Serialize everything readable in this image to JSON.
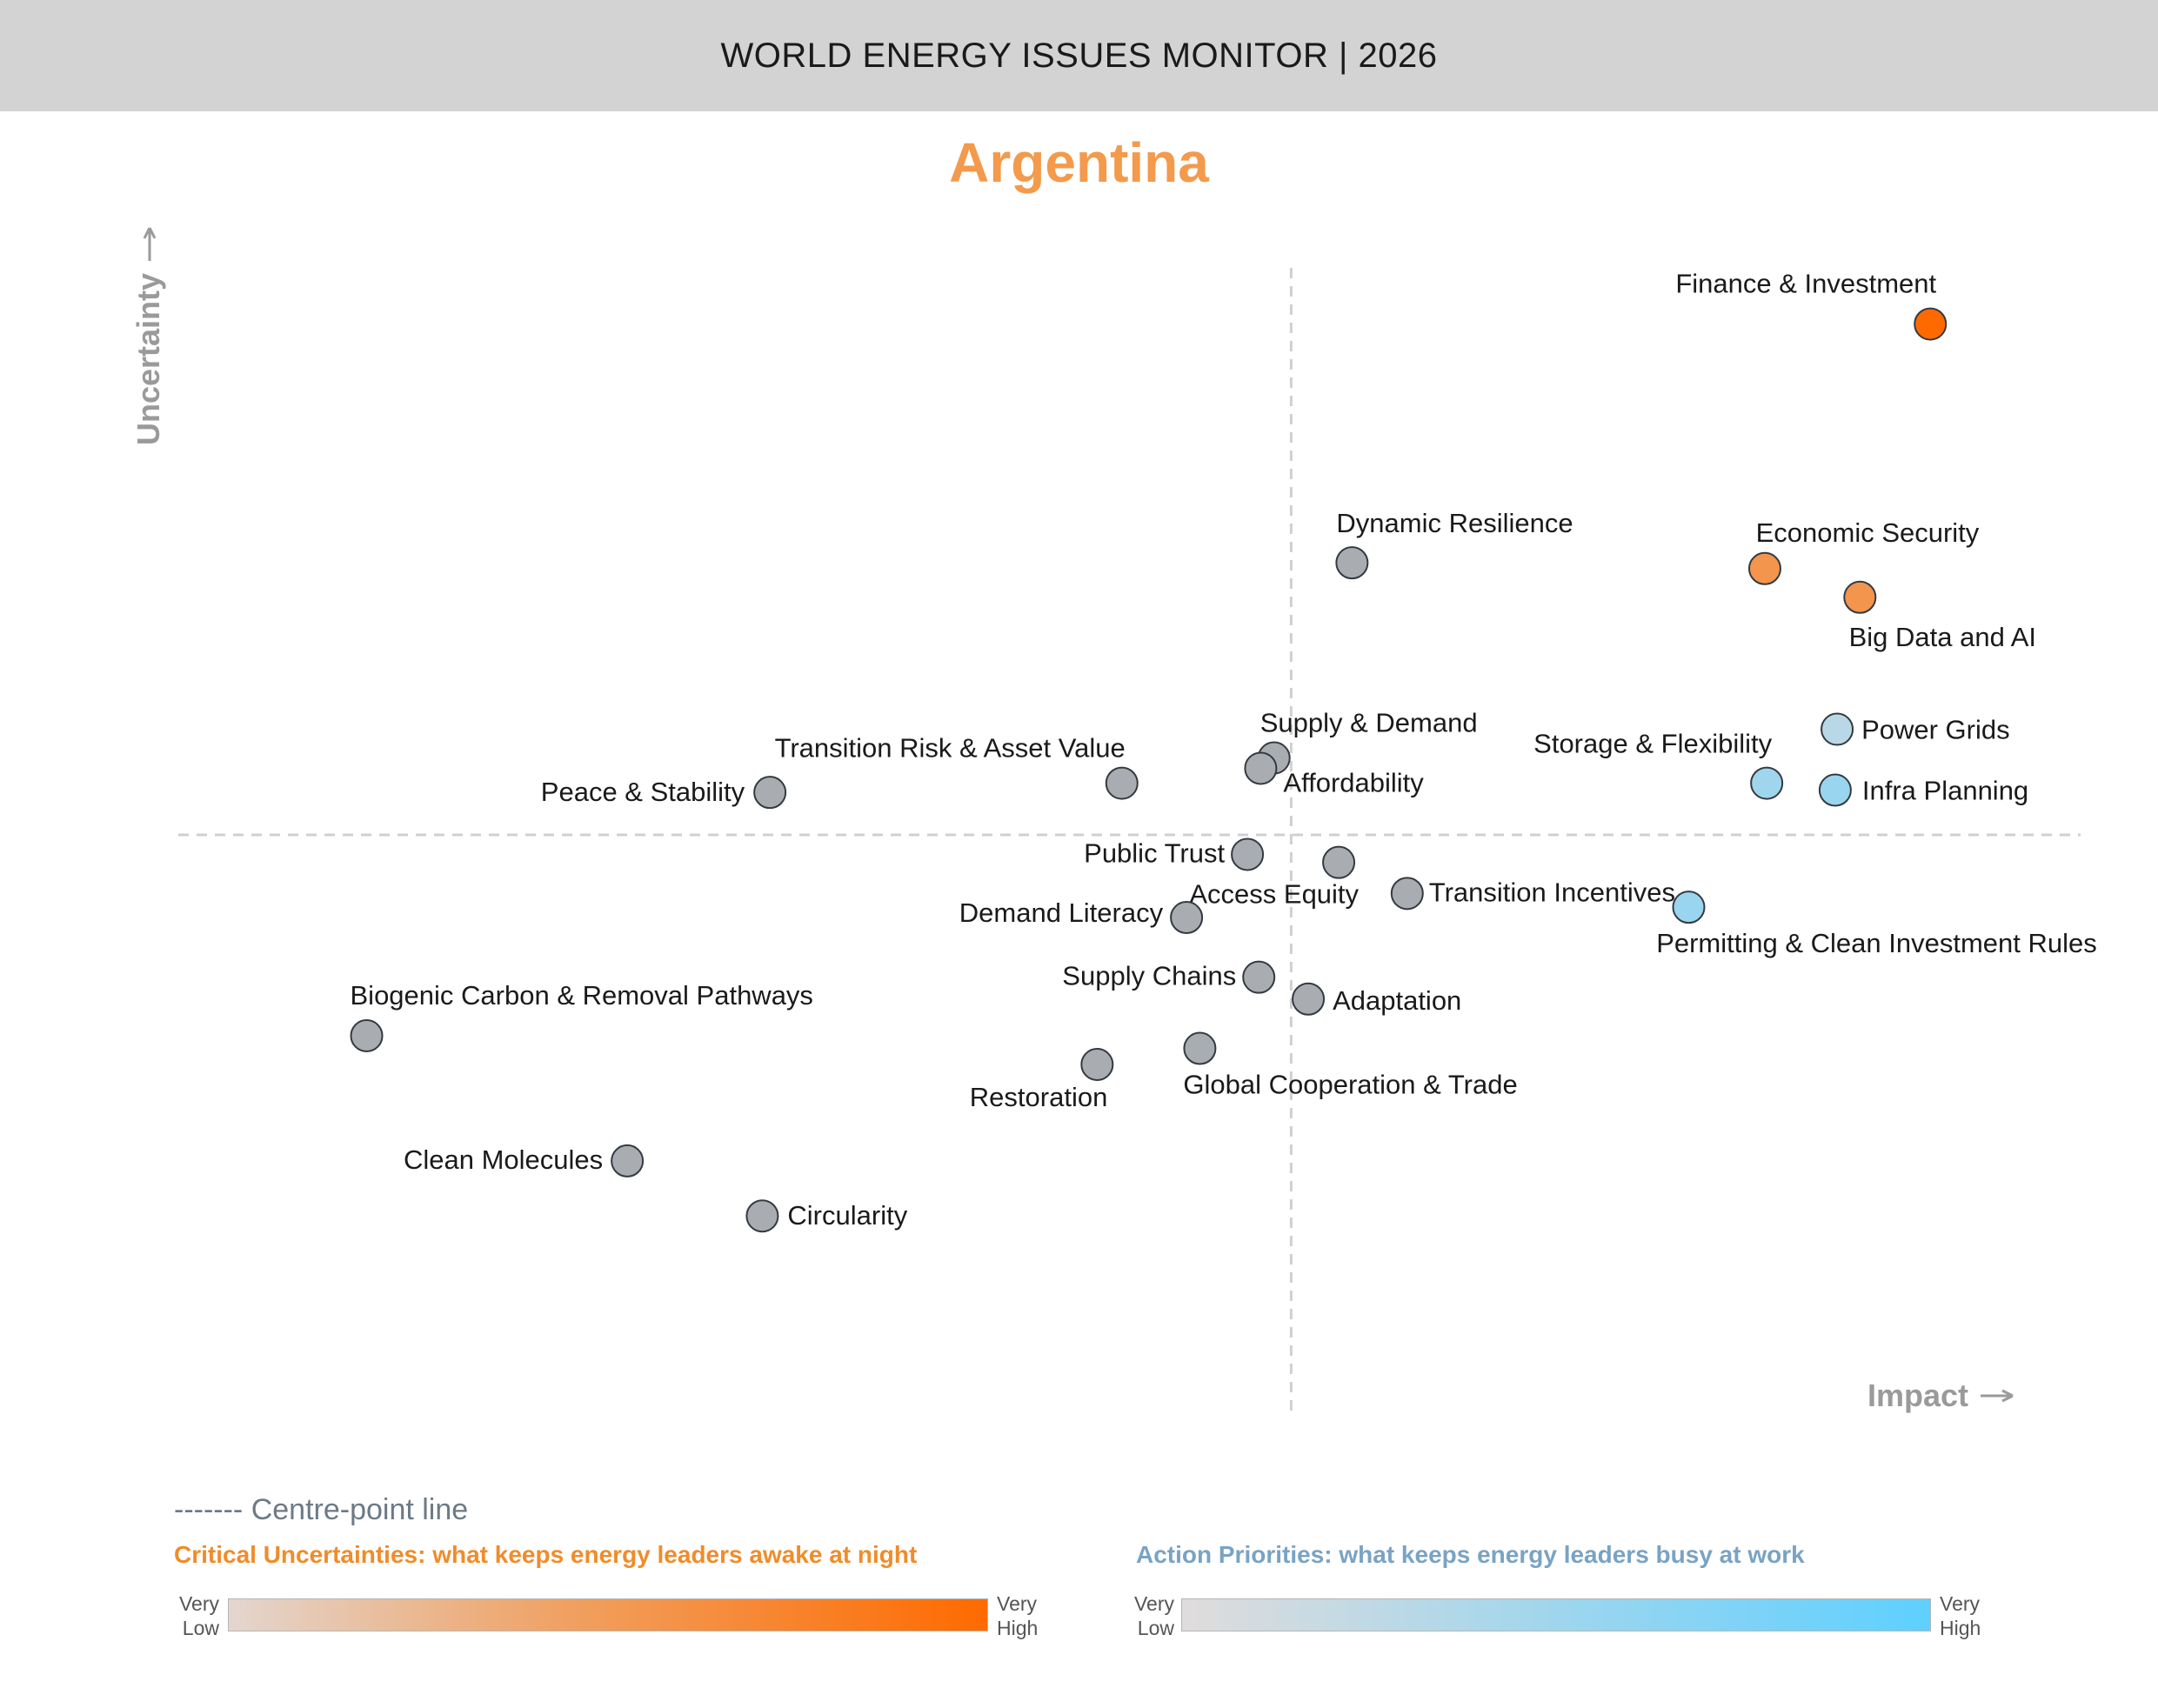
{
  "header": {
    "title": "WORLD ENERGY ISSUES MONITOR | 2026"
  },
  "country": "Argentina",
  "colors": {
    "uncertainty_very_low": "#e3d6cf",
    "uncertainty_mid": "#f0a060",
    "uncertainty_very_high": "#ff6a00",
    "priority_very_low": "#e0dcdc",
    "priority_very_high": "#5ed0ff",
    "neutral_point": "#a9adb1",
    "centre_line": "#d0d0d0"
  },
  "chart_data": {
    "type": "scatter",
    "x_axis_label": "Impact",
    "y_axis_label": "Uncertainty",
    "xlim": [
      0,
      100
    ],
    "ylim": [
      0,
      100
    ],
    "centre_point": {
      "x": 58.5,
      "y": 50
    },
    "points": [
      {
        "name": "Finance & Investment",
        "x": 92.1,
        "y": 94.5,
        "category": "uncertainty",
        "intensity": 1.0
      },
      {
        "name": "Economic Security",
        "x": 83.4,
        "y": 73.2,
        "category": "uncertainty",
        "intensity": 0.6
      },
      {
        "name": "Big Data and AI",
        "x": 88.4,
        "y": 70.7,
        "category": "uncertainty",
        "intensity": 0.6
      },
      {
        "name": "Power Grids",
        "x": 87.2,
        "y": 59.2,
        "category": "priority",
        "intensity": 0.3
      },
      {
        "name": "Storage & Flexibility",
        "x": 83.5,
        "y": 54.5,
        "category": "priority",
        "intensity": 0.5
      },
      {
        "name": "Infra Planning",
        "x": 87.1,
        "y": 53.9,
        "category": "priority",
        "intensity": 0.55
      },
      {
        "name": "Permitting & Clean Investment Rules",
        "x": 79.4,
        "y": 43.7,
        "category": "priority",
        "intensity": 0.55
      },
      {
        "name": "Dynamic Resilience",
        "x": 61.7,
        "y": 73.7,
        "category": "neutral"
      },
      {
        "name": "Supply & Demand",
        "x": 57.6,
        "y": 56.7,
        "category": "neutral"
      },
      {
        "name": "Affordability",
        "x": 56.9,
        "y": 55.8,
        "category": "neutral"
      },
      {
        "name": "Transition Risk & Asset Value",
        "x": 49.6,
        "y": 54.5,
        "category": "neutral"
      },
      {
        "name": "Peace & Stability",
        "x": 31.1,
        "y": 53.7,
        "category": "neutral"
      },
      {
        "name": "Public Trust",
        "x": 56.2,
        "y": 48.3,
        "category": "neutral"
      },
      {
        "name": "Access Equity",
        "x": 61.0,
        "y": 47.6,
        "category": "neutral"
      },
      {
        "name": "Transition Incentives",
        "x": 64.6,
        "y": 44.9,
        "category": "neutral"
      },
      {
        "name": "Demand Literacy",
        "x": 53.0,
        "y": 42.8,
        "category": "neutral"
      },
      {
        "name": "Supply Chains",
        "x": 56.8,
        "y": 37.6,
        "category": "neutral"
      },
      {
        "name": "Adaptation",
        "x": 59.4,
        "y": 35.7,
        "category": "neutral"
      },
      {
        "name": "Biogenic Carbon & Removal Pathways",
        "x": 9.9,
        "y": 32.5,
        "category": "neutral"
      },
      {
        "name": "Restoration",
        "x": 48.3,
        "y": 30.0,
        "category": "neutral"
      },
      {
        "name": "Global Cooperation & Trade",
        "x": 53.7,
        "y": 31.4,
        "category": "neutral"
      },
      {
        "name": "Clean Molecules",
        "x": 23.6,
        "y": 21.6,
        "category": "neutral"
      },
      {
        "name": "Circularity",
        "x": 30.7,
        "y": 16.8,
        "category": "neutral"
      }
    ]
  },
  "legend": {
    "centre_line_label": "------- Centre-point line",
    "critical_uncertainties_title": "Critical Uncertainties: what keeps energy leaders awake at night",
    "action_priorities_title": "Action Priorities: what keeps energy leaders busy at work",
    "very_low": [
      "Very",
      "Low"
    ],
    "very_high": [
      "Very",
      "High"
    ]
  }
}
